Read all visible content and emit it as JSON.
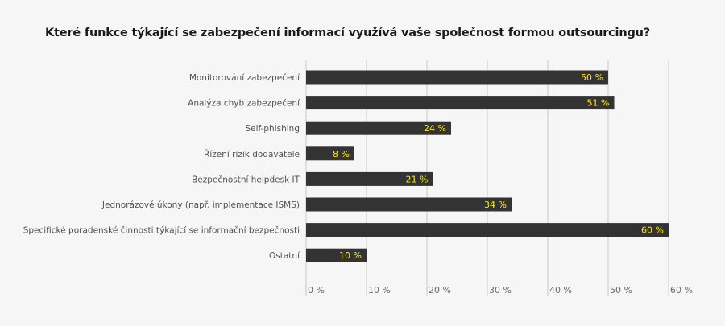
{
  "chart_data": {
    "type": "bar",
    "orientation": "horizontal",
    "title": "Které funkce týkající se zabezpečení informací využívá vaše společnost formou outsourcingu?",
    "categories": [
      "Monitorování zabezpečení",
      "Analýza chyb zabezpečení",
      "Self-phishing",
      "Řízení rizik dodavatele",
      "Bezpečnostní helpdesk IT",
      "Jednorázové úkony  (např. implementace ISMS)",
      "Specifické poradenské činnosti týkající se informační bezpečnosti",
      "Ostatní"
    ],
    "values": [
      50,
      51,
      24,
      8,
      21,
      34,
      60,
      10
    ],
    "value_labels": [
      "50 %",
      "51 %",
      "24 %",
      "8 %",
      "21 %",
      "34 %",
      "60 %",
      "10 %"
    ],
    "xlim": [
      0,
      60
    ],
    "ticks": [
      0,
      10,
      20,
      30,
      40,
      50,
      60
    ],
    "tick_labels": [
      "0 %",
      "10 %",
      "20 %",
      "30 %",
      "40 %",
      "50 %",
      "60 %"
    ],
    "xlabel": "",
    "ylabel": "",
    "grid": true,
    "legend": "none",
    "colors": {
      "bar": "#333333",
      "value_text": "#ffe600",
      "grid": "#c8c8c8",
      "background": "#f6f6f6"
    }
  }
}
